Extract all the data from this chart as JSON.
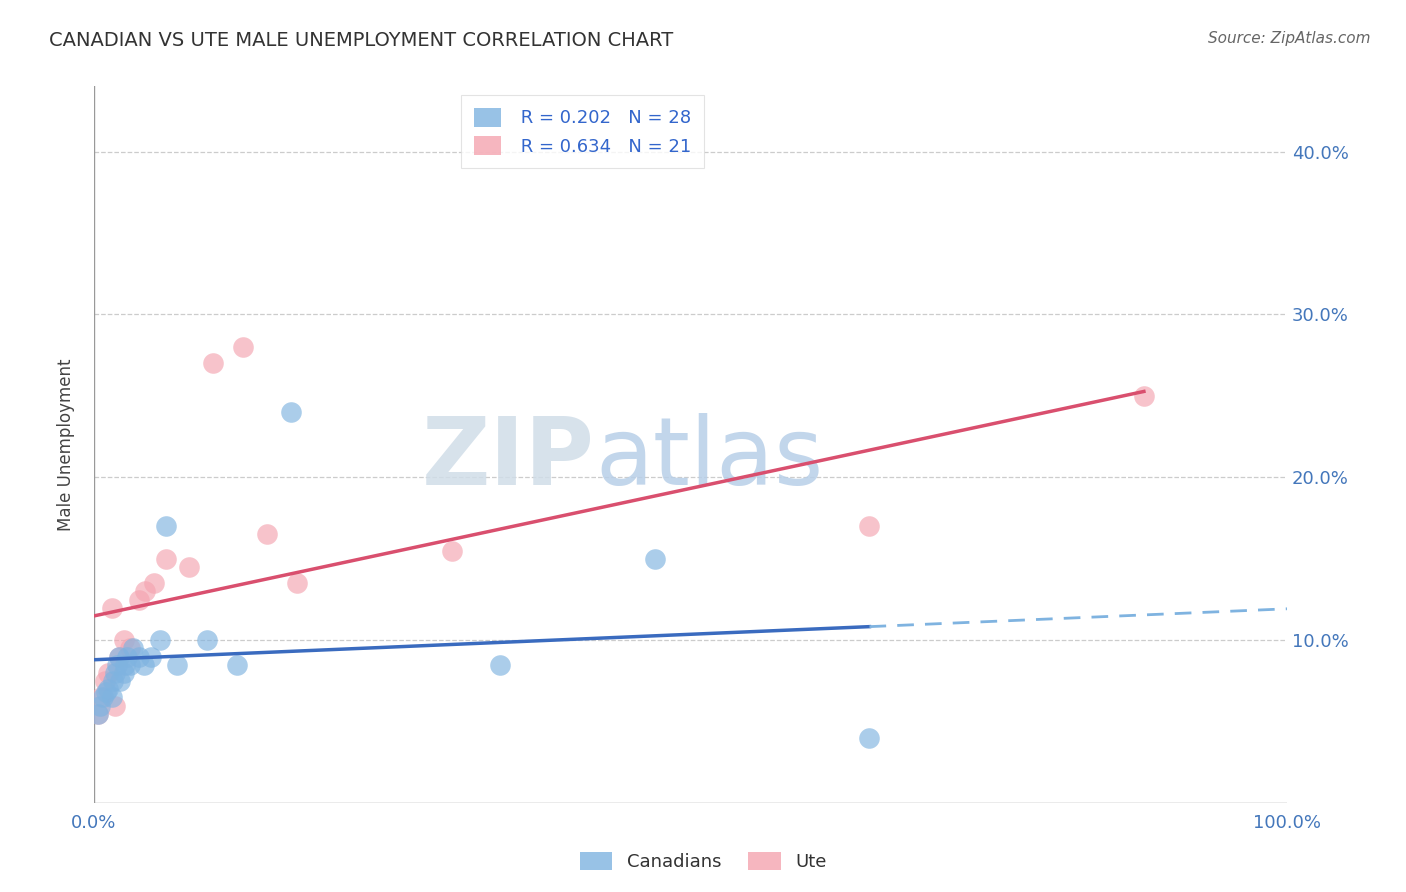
{
  "title": "CANADIAN VS UTE MALE UNEMPLOYMENT CORRELATION CHART",
  "source": "Source: ZipAtlas.com",
  "ylabel": "Male Unemployment",
  "ytick_labels": [
    "10.0%",
    "20.0%",
    "30.0%",
    "40.0%"
  ],
  "ytick_values": [
    0.1,
    0.2,
    0.3,
    0.4
  ],
  "xlim": [
    0.0,
    1.0
  ],
  "ylim": [
    0.0,
    0.44
  ],
  "watermark_zip": "ZIP",
  "watermark_atlas": "atlas",
  "legend_canadians_R": "0.202",
  "legend_canadians_N": "28",
  "legend_ute_R": "0.634",
  "legend_ute_N": "21",
  "canadians_color": "#7fb3e0",
  "ute_color": "#f4a4b0",
  "trendline_canadians_solid_color": "#3a6bbf",
  "trendline_canadians_dash_color": "#7fb3e0",
  "trendline_ute_color": "#d94f6e",
  "canadians_x": [
    0.003,
    0.005,
    0.008,
    0.01,
    0.012,
    0.015,
    0.016,
    0.018,
    0.019,
    0.021,
    0.022,
    0.025,
    0.026,
    0.028,
    0.03,
    0.033,
    0.038,
    0.042,
    0.048,
    0.055,
    0.06,
    0.07,
    0.095,
    0.12,
    0.165,
    0.34,
    0.47,
    0.65
  ],
  "canadians_y": [
    0.055,
    0.06,
    0.065,
    0.068,
    0.07,
    0.065,
    0.075,
    0.08,
    0.085,
    0.09,
    0.075,
    0.08,
    0.085,
    0.09,
    0.085,
    0.095,
    0.09,
    0.085,
    0.09,
    0.1,
    0.17,
    0.085,
    0.1,
    0.085,
    0.24,
    0.085,
    0.15,
    0.04
  ],
  "ute_x": [
    0.003,
    0.006,
    0.009,
    0.012,
    0.015,
    0.018,
    0.021,
    0.025,
    0.03,
    0.038,
    0.043,
    0.05,
    0.06,
    0.08,
    0.1,
    0.125,
    0.145,
    0.17,
    0.3,
    0.65,
    0.88
  ],
  "ute_y": [
    0.055,
    0.065,
    0.075,
    0.08,
    0.12,
    0.06,
    0.09,
    0.1,
    0.095,
    0.125,
    0.13,
    0.135,
    0.15,
    0.145,
    0.27,
    0.28,
    0.165,
    0.135,
    0.155,
    0.17,
    0.25
  ],
  "background_color": "#ffffff",
  "grid_color": "#cccccc",
  "axis_color": "#999999"
}
